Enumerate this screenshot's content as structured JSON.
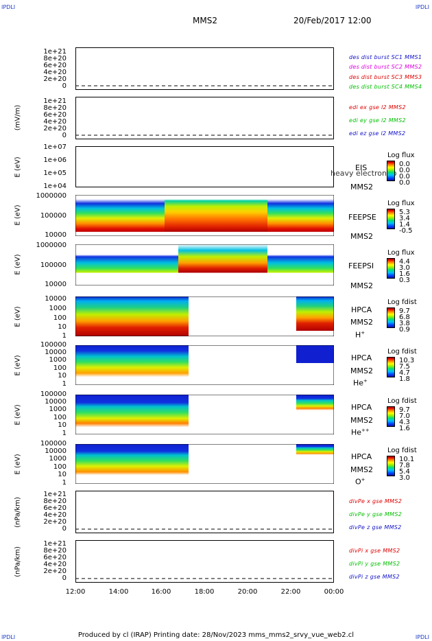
{
  "corner_label": "IPDLI",
  "header": {
    "spacecraft": "MMS2",
    "date": "20/Feb/2017 12:00"
  },
  "footer": "Produced by cl (IRAP)   Printing date: 28/Nov/2023   mms_mms2_srvy_vue_web2.cl",
  "chart_data": {
    "type": "heatmap",
    "x_ticks": [
      "12:00",
      "14:00",
      "16:00",
      "18:00",
      "20:00",
      "22:00",
      "00:00"
    ],
    "panels": [
      {
        "name": "des dist burst",
        "ylabel": "",
        "yticks": [
          "1e+21",
          "8e+20",
          "6e+20",
          "4e+20",
          "2e+20",
          "0"
        ],
        "legend": [
          {
            "text": "des dist burst SC1 MMS1",
            "color": "#1010c8"
          },
          {
            "text": "des dist burst SC2 MMS2",
            "color": "#e000e0"
          },
          {
            "text": "des dist burst SC3 MMS3",
            "color": "#e00000"
          },
          {
            "text": "des dist burst SC4 MMS4",
            "color": "#00c000"
          }
        ]
      },
      {
        "name": "edi e gse",
        "ylabel": "(mV/m)",
        "yticks": [
          "1e+21",
          "8e+20",
          "6e+20",
          "4e+20",
          "2e+20",
          "0"
        ],
        "legend": [
          {
            "text": "edi ex gse l2 MMS2",
            "color": "#e00000"
          },
          {
            "text": "edi ey gse l2 MMS2",
            "color": "#00c000"
          },
          {
            "text": "edi ez gse l2 MMS2",
            "color": "#1010c8"
          }
        ]
      },
      {
        "name": "EIS",
        "ylabel": "E (eV)",
        "yticks": [
          "1e+07",
          "1e+06",
          "1e+05",
          "1e+04"
        ],
        "side": [
          "EIS",
          "MMS2"
        ],
        "overlay": "heavy electron to",
        "cb_title": "Log flux",
        "cb_values": [
          "0.0",
          "0.0",
          "0.0",
          "0.0"
        ]
      },
      {
        "name": "FEEPSE",
        "ylabel": "E (eV)",
        "yticks": [
          "1000000",
          "100000",
          "10000"
        ],
        "side": [
          "FEEPSE",
          "MMS2"
        ],
        "cb_title": "Log flux",
        "cb_values": [
          "5.3",
          "3.4",
          "1.4",
          "-0.5"
        ]
      },
      {
        "name": "FEEPSI",
        "ylabel": "E (eV)",
        "yticks": [
          "1000000",
          "100000",
          "10000"
        ],
        "side": [
          "FEEPSI",
          "MMS2"
        ],
        "cb_title": "Log flux",
        "cb_values": [
          "4.4",
          "3.0",
          "1.6",
          "0.3"
        ]
      },
      {
        "name": "HPCA H+",
        "ylabel": "E (eV)",
        "yticks": [
          "10000",
          "1000",
          "100",
          "10",
          "1"
        ],
        "side": [
          "HPCA",
          "MMS2"
        ],
        "species": "H",
        "charge": "+",
        "cb_title": "Log fdist",
        "cb_values": [
          "9.7",
          "6.8",
          "3.8",
          "0.9"
        ]
      },
      {
        "name": "HPCA He+",
        "ylabel": "E (eV)",
        "yticks": [
          "100000",
          "10000",
          "1000",
          "100",
          "10",
          "1"
        ],
        "side": [
          "HPCA",
          "MMS2"
        ],
        "species": "He",
        "charge": "+",
        "cb_title": "Log fdist",
        "cb_values": [
          "10.3",
          "7.5",
          "4.7",
          "1.8"
        ]
      },
      {
        "name": "HPCA He++",
        "ylabel": "E (eV)",
        "yticks": [
          "100000",
          "10000",
          "1000",
          "100",
          "10",
          "1"
        ],
        "side": [
          "HPCA",
          "MMS2"
        ],
        "species": "He",
        "charge": "++",
        "cb_title": "Log fdist",
        "cb_values": [
          "9.7",
          "7.0",
          "4.3",
          "1.6"
        ]
      },
      {
        "name": "HPCA O+",
        "ylabel": "E (eV)",
        "yticks": [
          "100000",
          "10000",
          "1000",
          "100",
          "10",
          "1"
        ],
        "side": [
          "HPCA",
          "MMS2"
        ],
        "species": "O",
        "charge": "+",
        "cb_title": "Log fdist",
        "cb_values": [
          "10.1",
          "7.8",
          "5.4",
          "3.0"
        ]
      },
      {
        "name": "divPe",
        "ylabel": "(nPa/km)",
        "yticks": [
          "1e+21",
          "8e+20",
          "6e+20",
          "4e+20",
          "2e+20",
          "0"
        ],
        "legend": [
          {
            "text": "divPe x gse MMS2",
            "color": "#e00000"
          },
          {
            "text": "divPe y gse MMS2",
            "color": "#00c000"
          },
          {
            "text": "divPe z gse MMS2",
            "color": "#1010c8"
          }
        ]
      },
      {
        "name": "divPi",
        "ylabel": "(nPa/km)",
        "yticks": [
          "1e+21",
          "8e+20",
          "6e+20",
          "4e+20",
          "2e+20",
          "0"
        ],
        "legend": [
          {
            "text": "divPi x gse MMS2",
            "color": "#e00000"
          },
          {
            "text": "divPi y gse MMS2",
            "color": "#00c000"
          },
          {
            "text": "divPi z gse MMS2",
            "color": "#1010c8"
          }
        ]
      }
    ],
    "hpca_data_gap": [
      "17:15",
      "22:10"
    ],
    "colorbar_scale": "rainbow (blue low to dark red high)"
  }
}
